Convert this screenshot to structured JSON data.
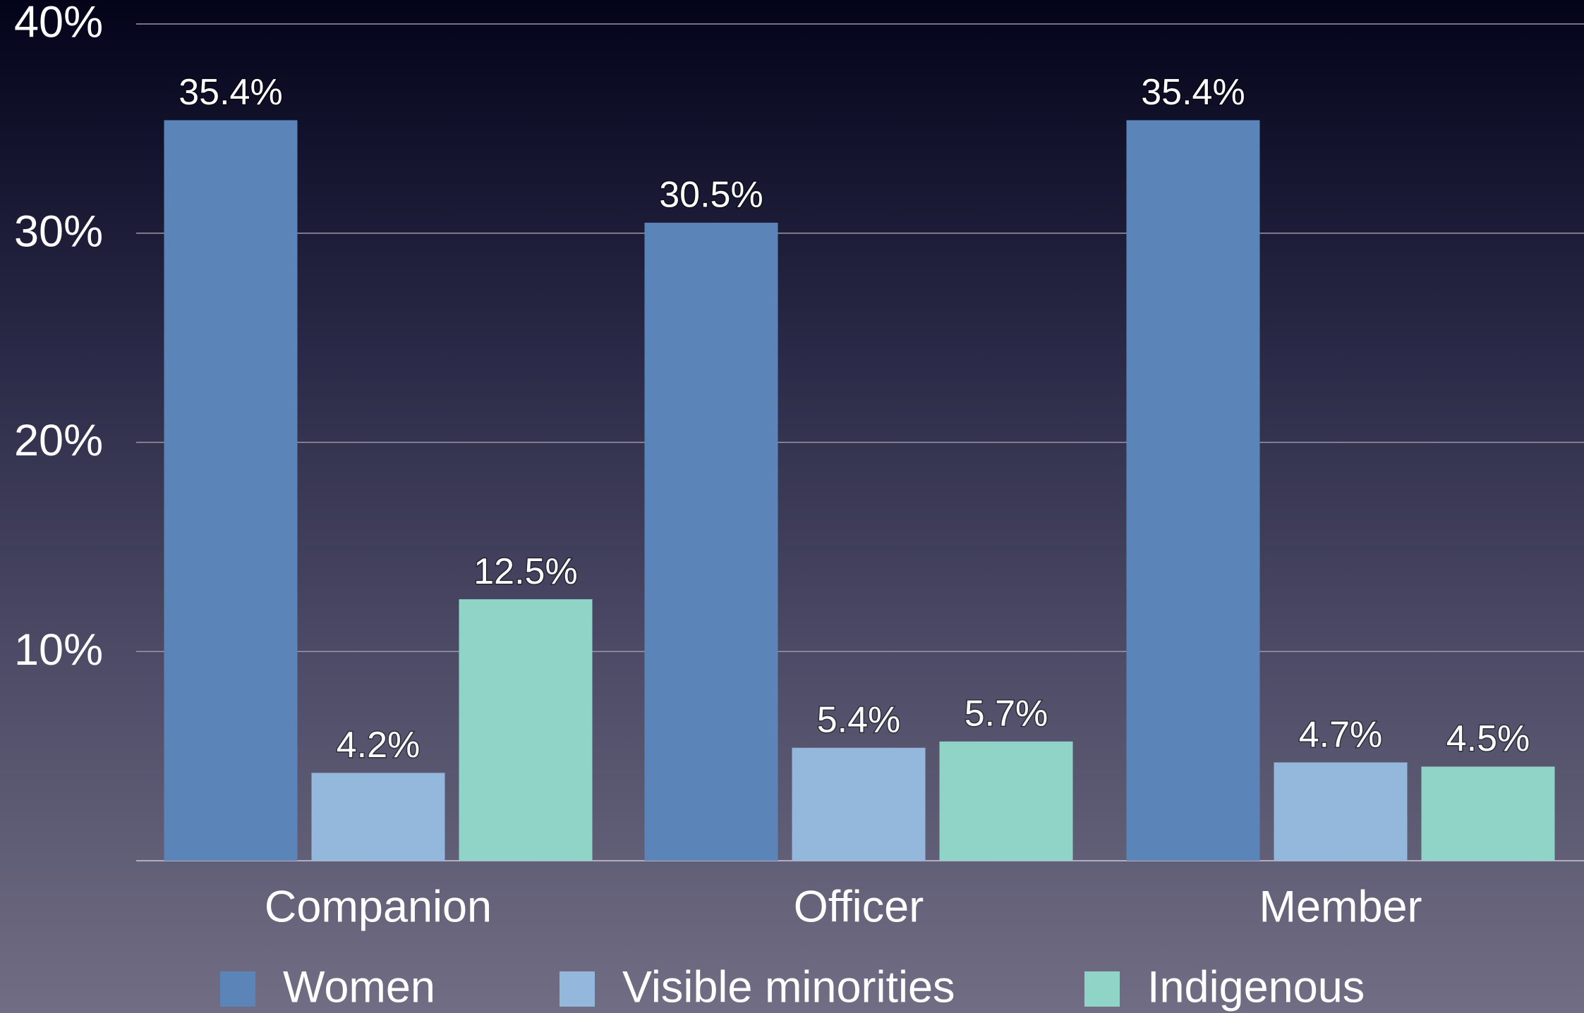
{
  "chart_data": {
    "type": "bar",
    "categories": [
      "Companion",
      "Officer",
      "Member"
    ],
    "series": [
      {
        "name": "Women",
        "color": "#5b84b8",
        "values": [
          35.4,
          30.5,
          35.4
        ],
        "value_labels": [
          "35.4%",
          "30.5%",
          "35.4%"
        ]
      },
      {
        "name": "Visible minorities",
        "color": "#94b7dc",
        "values": [
          4.2,
          5.4,
          4.7
        ],
        "value_labels": [
          "4.2%",
          "5.4%",
          "4.7%"
        ]
      },
      {
        "name": "Indigenous",
        "color": "#8fd4c6",
        "values": [
          12.5,
          5.7,
          4.5
        ],
        "value_labels": [
          "12.5%",
          "5.7%",
          "4.5%"
        ]
      }
    ],
    "ylim": [
      0,
      40
    ],
    "yticks": [
      {
        "value": 10,
        "label": "10%"
      },
      {
        "value": 20,
        "label": "20%"
      },
      {
        "value": 30,
        "label": "30%"
      },
      {
        "value": 40,
        "label": "40%"
      }
    ],
    "grid": true
  }
}
